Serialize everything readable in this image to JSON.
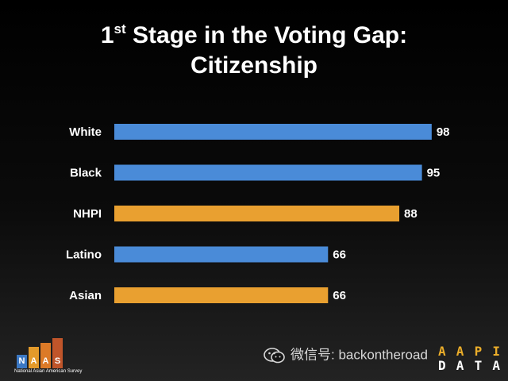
{
  "title": {
    "ordinal": "1",
    "ordinal_suffix": "st",
    "line1_rest": " Stage in the Voting Gap:",
    "line2": "Citizenship"
  },
  "chart_data": {
    "type": "bar",
    "orientation": "horizontal",
    "categories": [
      "White",
      "Black",
      "NHPI",
      "Latino",
      "Asian"
    ],
    "values": [
      98,
      95,
      88,
      66,
      66
    ],
    "bar_colors": [
      "#4a8bd8",
      "#4a8bd8",
      "#e9a030",
      "#4a8bd8",
      "#e9a030"
    ],
    "xlim": [
      0,
      100
    ],
    "grid": false,
    "legend": "none",
    "title": "1st Stage in the Voting Gap: Citizenship",
    "xlabel": "",
    "ylabel": ""
  },
  "logos": {
    "naas": {
      "letters": [
        "N",
        "A",
        "A",
        "S"
      ],
      "block_colors": [
        "#3b78c4",
        "#e39a2a",
        "#dc7a27",
        "#c0552a"
      ],
      "block_levels": [
        0.45,
        0.7,
        0.85,
        1.0
      ],
      "caption": "National Asian American Survey"
    },
    "aapi": {
      "row1": [
        "A",
        "A",
        "P",
        "I"
      ],
      "row2": [
        "D",
        "A",
        "T",
        "A"
      ]
    }
  },
  "watermark": {
    "icon": "wechat-icon",
    "text": "微信号: backontheroad"
  },
  "colors": {
    "background": "#000000",
    "text": "#ffffff",
    "blue_bar": "#4a8bd8",
    "orange_bar": "#e9a030"
  }
}
